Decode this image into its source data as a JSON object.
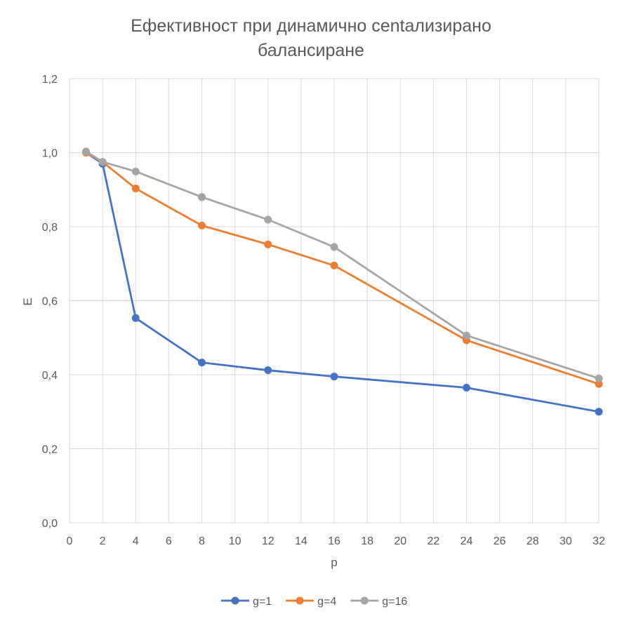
{
  "chart_data": {
    "type": "line",
    "title_lines": [
      "Ефективност при динамично centализирано",
      "балансиране"
    ],
    "xlabel": "p",
    "ylabel": "E",
    "xlim": [
      0,
      32
    ],
    "ylim": [
      0,
      1.2
    ],
    "xticks": [
      "0",
      "2",
      "4",
      "6",
      "8",
      "10",
      "12",
      "14",
      "16",
      "18",
      "20",
      "22",
      "24",
      "26",
      "28",
      "30",
      "32"
    ],
    "yticks": [
      "0,0",
      "0,2",
      "0,4",
      "0,6",
      "0,8",
      "1,0",
      "1,2"
    ],
    "grid": true,
    "legend_position": "bottom",
    "x": [
      1,
      2,
      4,
      8,
      12,
      16,
      24,
      32
    ],
    "series": [
      {
        "name": "g=1",
        "color": "#4472C4",
        "values": [
          1.0,
          0.97,
          0.553,
          0.433,
          0.412,
          0.395,
          0.365,
          0.3
        ]
      },
      {
        "name": "g=4",
        "color": "#ED7D31",
        "values": [
          1.0,
          0.975,
          0.903,
          0.803,
          0.752,
          0.695,
          0.493,
          0.375
        ]
      },
      {
        "name": "g=16",
        "color": "#A5A5A5",
        "values": [
          1.003,
          0.975,
          0.949,
          0.88,
          0.819,
          0.745,
          0.506,
          0.39
        ]
      }
    ]
  }
}
